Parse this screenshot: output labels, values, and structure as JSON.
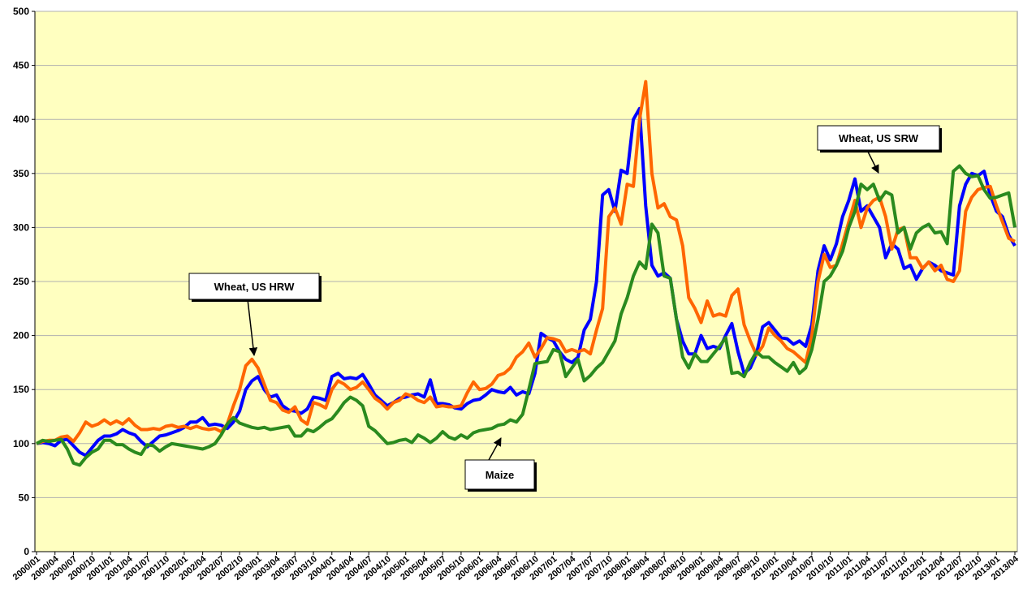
{
  "chart_data": {
    "type": "line",
    "categories": [
      "2000/01",
      null,
      null,
      "2000/04",
      null,
      null,
      "2000/07",
      null,
      null,
      "2000/10",
      null,
      null,
      "2001/01",
      null,
      null,
      "2001/04",
      null,
      null,
      "2001/07",
      null,
      null,
      "2001/10",
      null,
      null,
      "2002/01",
      null,
      null,
      "2002/04",
      null,
      null,
      "2002/07",
      null,
      null,
      "2002/10",
      null,
      null,
      "2003/01",
      null,
      null,
      "2003/04",
      null,
      null,
      "2003/07",
      null,
      null,
      "2003/10",
      null,
      null,
      "2004/01",
      null,
      null,
      "2004/04",
      null,
      null,
      "2004/07",
      null,
      null,
      "2004/10",
      null,
      null,
      "2005/01",
      null,
      null,
      "2005/04",
      null,
      null,
      "2005/07",
      null,
      null,
      "2005/10",
      null,
      null,
      "2006/01",
      null,
      null,
      "2006/04",
      null,
      null,
      "2006/07",
      null,
      null,
      "2006/10",
      null,
      null,
      "2007/01",
      null,
      null,
      "2007/04",
      null,
      null,
      "2007/07",
      null,
      null,
      "2007/10",
      null,
      null,
      "2008/01",
      null,
      null,
      "2008/04",
      null,
      null,
      "2008/07",
      null,
      null,
      "2008/10",
      null,
      null,
      "2009/01",
      null,
      null,
      "2009/04",
      null,
      null,
      "2009/07",
      null,
      null,
      "2009/10",
      null,
      null,
      "2010/01",
      null,
      null,
      "2010/04",
      null,
      null,
      "2010/07",
      null,
      null,
      "2010/10",
      null,
      null,
      "2011/01",
      null,
      null,
      "2011/04",
      null,
      null,
      "2011/07",
      null,
      null,
      "2011/10",
      null,
      null,
      "2012/01",
      null,
      null,
      "2012/04",
      null,
      null,
      "2012/07",
      null,
      null,
      "2012/10",
      null,
      null,
      "2013/01",
      null,
      null,
      "2013/04"
    ],
    "series": [
      {
        "name": "Wheat, US HRW",
        "color": "#0000ff",
        "values": [
          100,
          101,
          100,
          98,
          103,
          104,
          98,
          92,
          89,
          96,
          103,
          107,
          107,
          109,
          113,
          110,
          108,
          102,
          97,
          102,
          107,
          108,
          110,
          112,
          115,
          120,
          120,
          124,
          117,
          118,
          117,
          114,
          120,
          130,
          150,
          158,
          162,
          150,
          143,
          145,
          135,
          131,
          130,
          128,
          132,
          143,
          142,
          140,
          162,
          165,
          160,
          161,
          160,
          164,
          155,
          145,
          140,
          135,
          138,
          142,
          143,
          145,
          146,
          143,
          159,
          137,
          137,
          136,
          133,
          132,
          137,
          140,
          141,
          145,
          150,
          148,
          147,
          152,
          145,
          148,
          146,
          165,
          202,
          198,
          195,
          185,
          178,
          175,
          180,
          205,
          215,
          250,
          330,
          335,
          315,
          353,
          350,
          400,
          410,
          320,
          265,
          255,
          258,
          253,
          215,
          195,
          183,
          183,
          200,
          188,
          190,
          188,
          200,
          211,
          185,
          165,
          170,
          183,
          208,
          212,
          205,
          198,
          197,
          192,
          195,
          190,
          210,
          260,
          283,
          270,
          285,
          310,
          325,
          345,
          315,
          320,
          310,
          300,
          272,
          285,
          280,
          262,
          265,
          252,
          262,
          268,
          265,
          260,
          258,
          256,
          320,
          340,
          350,
          348,
          352,
          330,
          315,
          310,
          293,
          283
        ]
      },
      {
        "name": "Wheat, US SRW",
        "color": "#ff6600",
        "values": [
          100,
          102,
          103,
          103,
          106,
          107,
          102,
          110,
          120,
          116,
          118,
          122,
          118,
          121,
          118,
          123,
          117,
          113,
          113,
          114,
          113,
          116,
          117,
          115,
          116,
          114,
          116,
          114,
          113,
          114,
          111,
          118,
          135,
          150,
          172,
          178,
          170,
          155,
          140,
          138,
          131,
          129,
          134,
          122,
          118,
          138,
          136,
          133,
          150,
          158,
          155,
          150,
          152,
          157,
          150,
          142,
          138,
          132,
          138,
          140,
          146,
          144,
          140,
          138,
          143,
          134,
          135,
          134,
          134,
          135,
          147,
          157,
          150,
          151,
          155,
          163,
          165,
          170,
          180,
          185,
          193,
          180,
          188,
          198,
          197,
          195,
          185,
          187,
          185,
          187,
          183,
          205,
          225,
          310,
          318,
          303,
          340,
          338,
          400,
          435,
          350,
          318,
          322,
          310,
          307,
          283,
          235,
          225,
          212,
          232,
          218,
          220,
          218,
          237,
          243,
          210,
          195,
          182,
          190,
          207,
          200,
          195,
          188,
          185,
          180,
          175,
          200,
          250,
          275,
          263,
          265,
          285,
          305,
          325,
          300,
          318,
          325,
          328,
          310,
          280,
          298,
          300,
          272,
          272,
          262,
          268,
          260,
          265,
          252,
          250,
          260,
          315,
          328,
          335,
          337,
          338,
          320,
          305,
          290,
          287
        ]
      },
      {
        "name": "Maize",
        "color": "#2a8a1e",
        "values": [
          100,
          103,
          102,
          103,
          104,
          95,
          82,
          80,
          87,
          92,
          95,
          103,
          103,
          99,
          99,
          95,
          92,
          90,
          99,
          98,
          93,
          97,
          100,
          99,
          98,
          97,
          96,
          95,
          97,
          100,
          108,
          118,
          124,
          119,
          117,
          115,
          114,
          115,
          113,
          114,
          115,
          116,
          107,
          107,
          113,
          111,
          115,
          120,
          123,
          130,
          138,
          143,
          140,
          135,
          116,
          112,
          106,
          100,
          101,
          103,
          104,
          101,
          108,
          105,
          101,
          105,
          111,
          106,
          104,
          108,
          105,
          110,
          112,
          113,
          114,
          117,
          118,
          122,
          120,
          127,
          150,
          174,
          175,
          176,
          187,
          185,
          162,
          170,
          178,
          158,
          163,
          170,
          175,
          185,
          195,
          220,
          235,
          255,
          268,
          262,
          303,
          295,
          255,
          253,
          215,
          180,
          170,
          183,
          176,
          176,
          183,
          190,
          198,
          165,
          166,
          162,
          175,
          185,
          180,
          180,
          175,
          171,
          167,
          175,
          165,
          170,
          187,
          215,
          250,
          255,
          265,
          278,
          300,
          315,
          340,
          335,
          340,
          325,
          333,
          330,
          295,
          300,
          280,
          295,
          300,
          303,
          295,
          296,
          285,
          352,
          357,
          350,
          347,
          348,
          335,
          327,
          328,
          330,
          332,
          300
        ]
      }
    ],
    "annotations": [
      {
        "series": 0
      },
      {
        "series": 2
      },
      {
        "series": 1
      }
    ],
    "ylim": [
      0,
      500
    ],
    "yticks": [
      0,
      50,
      100,
      150,
      200,
      250,
      300,
      350,
      400,
      450,
      500
    ],
    "grid": true,
    "background": "#ffffc0"
  }
}
